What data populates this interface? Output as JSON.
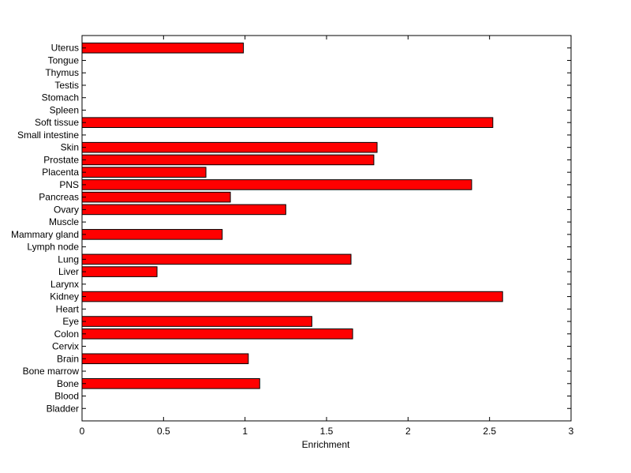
{
  "chart_data": {
    "type": "bar",
    "orientation": "horizontal",
    "categories": [
      "Bladder",
      "Blood",
      "Bone",
      "Bone marrow",
      "Brain",
      "Cervix",
      "Colon",
      "Eye",
      "Heart",
      "Kidney",
      "Larynx",
      "Liver",
      "Lung",
      "Lymph node",
      "Mammary gland",
      "Muscle",
      "Ovary",
      "Pancreas",
      "PNS",
      "Placenta",
      "Prostate",
      "Skin",
      "Small intestine",
      "Soft tissue",
      "Spleen",
      "Stomach",
      "Testis",
      "Thymus",
      "Tongue",
      "Uterus"
    ],
    "values": [
      0,
      0,
      1.09,
      0,
      1.02,
      0,
      1.66,
      1.41,
      0,
      2.58,
      0,
      0.46,
      1.65,
      0,
      0.86,
      0,
      1.25,
      0.91,
      2.39,
      0.76,
      1.79,
      1.81,
      0,
      2.52,
      0,
      0,
      0,
      0,
      0,
      0.99
    ],
    "title": "",
    "xlabel": "Enrichment",
    "ylabel": "",
    "xlim": [
      0,
      3
    ],
    "xticks": [
      0,
      0.5,
      1,
      1.5,
      2,
      2.5,
      3
    ],
    "xtick_labels": [
      "0",
      "0.5",
      "1",
      "1.5",
      "2",
      "2.5",
      "3"
    ],
    "grid": false,
    "bar_color": "#ff0000",
    "edge_color": "#000000"
  }
}
